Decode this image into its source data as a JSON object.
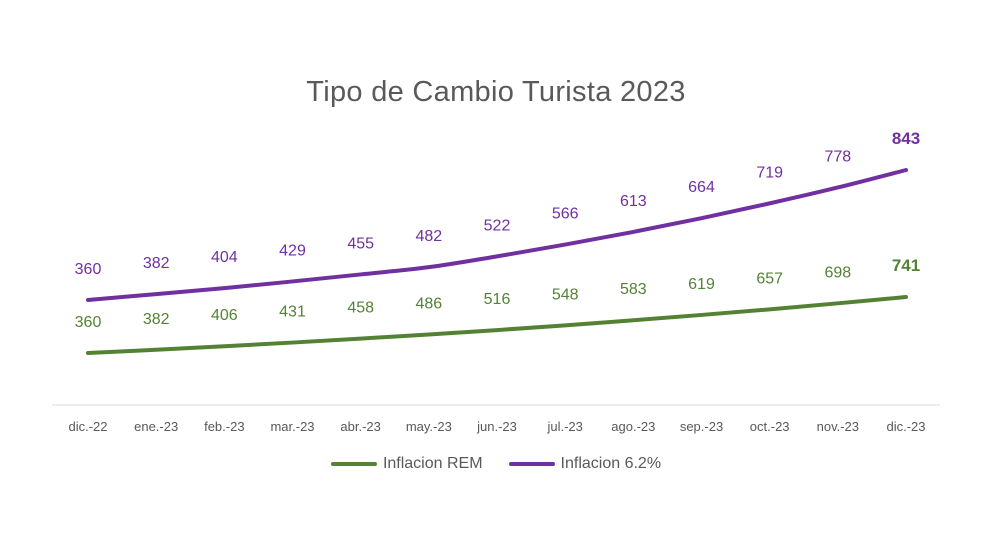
{
  "chart_data": {
    "type": "line",
    "title": "Tipo de Cambio Turista 2023",
    "xlabel": "",
    "ylabel": "",
    "categories": [
      "dic.-22",
      "ene.-23",
      "feb.-23",
      "mar.-23",
      "abr.-23",
      "may.-23",
      "jun.-23",
      "jul.-23",
      "ago.-23",
      "sep.-23",
      "oct.-23",
      "nov.-23",
      "dic.-23"
    ],
    "series": [
      {
        "name": "Inflacion REM",
        "color": "#548235",
        "values": [
          360,
          382,
          406,
          431,
          458,
          486,
          516,
          548,
          583,
          619,
          657,
          698,
          741
        ],
        "labels": [
          "360",
          "382",
          "406",
          "431",
          "458",
          "486",
          "516",
          "548",
          "583",
          "619",
          "657",
          "698",
          "741"
        ]
      },
      {
        "name": "Inflacion 6.2%",
        "color": "#7030a0",
        "values": [
          360,
          382,
          404,
          429,
          455,
          482,
          522,
          566,
          613,
          664,
          719,
          778,
          843
        ],
        "labels": [
          "360",
          "382",
          "404",
          "429",
          "455",
          "482",
          "522",
          "566",
          "613",
          "664",
          "719",
          "778",
          "843"
        ]
      }
    ],
    "grid": false,
    "legend_position": "bottom",
    "axis_color": "#d9d9d9",
    "tick_label_color": "#595959"
  }
}
